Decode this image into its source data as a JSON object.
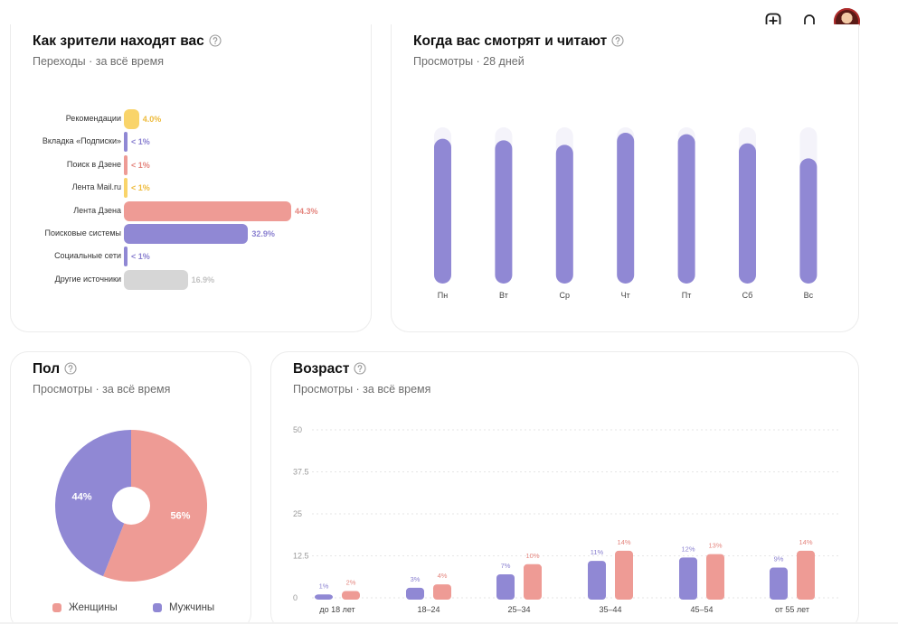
{
  "header": {
    "add_icon": "plus-square-icon",
    "bell_icon": "bell-icon",
    "avatar_icon": "user-avatar"
  },
  "cards": {
    "sources": {
      "title": "Как зрители находят вас",
      "subtitle": "Переходы · за всё время"
    },
    "days": {
      "title": "Когда вас смотрят и читают",
      "subtitle": "Просмотры · 28 дней"
    },
    "gender": {
      "title": "Пол",
      "subtitle": "Просмотры · за всё время"
    },
    "age": {
      "title": "Возраст",
      "subtitle": "Просмотры · за всё время"
    }
  },
  "colors": {
    "purple": "#9088d4",
    "pink": "#ee9b95",
    "yellow": "#f9d46a",
    "grey": "#d6d6d6",
    "track": "#f4f3fa",
    "pink_text": "#e4857e",
    "purple_text": "#8a80d0",
    "yellow_text": "#eebb3c",
    "grey_text": "#c2c2c2"
  },
  "chart_data": [
    {
      "type": "bar",
      "orientation": "horizontal",
      "categories": [
        "Рекомендации",
        "Вкладка «Подписки»",
        "Поиск в Дзене",
        "Лента Mail.ru",
        "Лента Дзена",
        "Поисковые системы",
        "Социальные сети",
        "Другие источники"
      ],
      "values": [
        4.0,
        0.5,
        0.5,
        0.5,
        44.3,
        32.9,
        0.5,
        16.9
      ],
      "value_labels": [
        "4.0%",
        "< 1%",
        "< 1%",
        "< 1%",
        "44.3%",
        "32.9%",
        "< 1%",
        "16.9%"
      ],
      "bar_colors": [
        "#f9d46a",
        "#9088d4",
        "#ee9b95",
        "#f9d46a",
        "#ee9b95",
        "#9088d4",
        "#9088d4",
        "#d6d6d6"
      ],
      "label_colors": [
        "#eebb3c",
        "#8a80d0",
        "#e4857e",
        "#eebb3c",
        "#e4857e",
        "#8a80d0",
        "#8a80d0",
        "#c2c2c2"
      ],
      "xlim": [
        0,
        44.3
      ]
    },
    {
      "type": "bar",
      "categories": [
        "Пн",
        "Вт",
        "Ср",
        "Чт",
        "Пт",
        "Сб",
        "Вс"
      ],
      "values": [
        96,
        95,
        92,
        100,
        99,
        93,
        83
      ],
      "ylim": [
        0,
        100
      ],
      "grid": false
    },
    {
      "type": "pie",
      "categories": [
        "Женщины",
        "Мужчины"
      ],
      "values": [
        56,
        44
      ],
      "value_labels": [
        "56%",
        "44%"
      ],
      "colors": [
        "#ee9b95",
        "#9088d4"
      ],
      "donut": true,
      "legend": "bottom"
    },
    {
      "type": "bar",
      "categories": [
        "до 18 лет",
        "18–24",
        "25–34",
        "35–44",
        "45–54",
        "от 55 лет"
      ],
      "series": [
        {
          "values": [
            1,
            3,
            7,
            11,
            12,
            9
          ],
          "value_labels": [
            "1%",
            "3%",
            "7%",
            "11%",
            "12%",
            "9%"
          ],
          "color": "#9088d4"
        },
        {
          "values": [
            2,
            4,
            10,
            14,
            13,
            14
          ],
          "value_labels": [
            "2%",
            "4%",
            "10%",
            "14%",
            "13%",
            "14%"
          ],
          "color": "#ee9b95"
        }
      ],
      "yticks": [
        "0",
        "12.5",
        "25",
        "37.5",
        "50"
      ],
      "ylim": [
        0,
        50
      ],
      "grid": true
    }
  ]
}
